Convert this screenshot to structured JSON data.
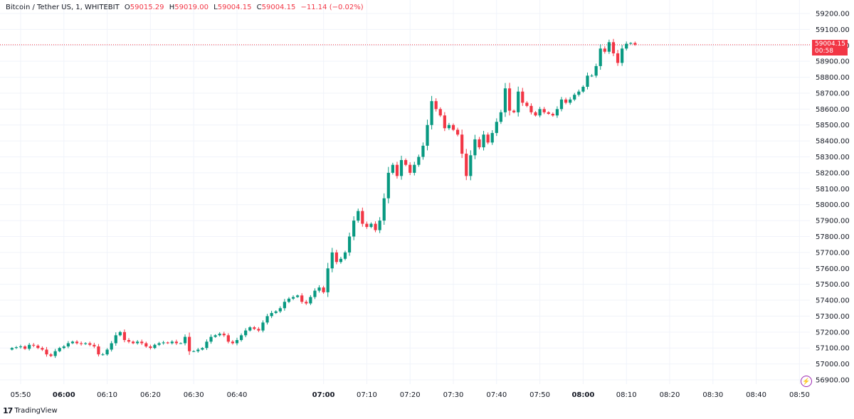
{
  "legend": {
    "symbol": "Bitcoin / Tether US, 1, WHITEBIT",
    "open_label": "O",
    "open": "59015.29",
    "high_label": "H",
    "high": "59019.00",
    "low_label": "L",
    "low": "59004.15",
    "close_label": "C",
    "close": "59004.15",
    "change": "−11.14 (−0.02%)"
  },
  "price_tag": {
    "price": "59004.15",
    "countdown": "00:58"
  },
  "branding": {
    "logo": "17",
    "name": "TradingView"
  },
  "colors": {
    "up": "#089981",
    "down": "#f23645",
    "grid": "#f0f3fa",
    "axis_text": "#131722"
  },
  "chart_data": {
    "type": "candlestick",
    "x_axis_ticks": [
      {
        "label": "05:50",
        "minute": 0,
        "bold": false
      },
      {
        "label": "06:00",
        "minute": 10,
        "bold": true
      },
      {
        "label": "06:10",
        "minute": 20,
        "bold": false
      },
      {
        "label": "06:20",
        "minute": 30,
        "bold": false
      },
      {
        "label": "06:30",
        "minute": 40,
        "bold": false
      },
      {
        "label": "06:40",
        "minute": 50,
        "bold": false
      },
      {
        "label": "07:00",
        "minute": 70,
        "bold": true
      },
      {
        "label": "07:10",
        "minute": 80,
        "bold": false
      },
      {
        "label": "07:20",
        "minute": 90,
        "bold": false
      },
      {
        "label": "07:30",
        "minute": 100,
        "bold": false
      },
      {
        "label": "07:40",
        "minute": 110,
        "bold": false
      },
      {
        "label": "07:50",
        "minute": 120,
        "bold": false
      },
      {
        "label": "08:00",
        "minute": 130,
        "bold": true
      },
      {
        "label": "08:10",
        "minute": 140,
        "bold": false
      },
      {
        "label": "08:20",
        "minute": 150,
        "bold": false
      },
      {
        "label": "08:30",
        "minute": 160,
        "bold": false
      },
      {
        "label": "08:40",
        "minute": 170,
        "bold": false
      },
      {
        "label": "08:50",
        "minute": 180,
        "bold": false
      }
    ],
    "y_axis_ticks": [
      "59200.00",
      "59100.00",
      "59000.00",
      "58900.00",
      "58800.00",
      "58700.00",
      "58600.00",
      "58500.00",
      "58400.00",
      "58300.00",
      "58200.00",
      "58100.00",
      "58000.00",
      "57900.00",
      "57800.00",
      "57700.00",
      "57600.00",
      "57500.00",
      "57400.00",
      "57300.00",
      "57200.00",
      "57100.00",
      "57000.00",
      "56900.00"
    ],
    "ylim": [
      56900,
      59200
    ],
    "last_price": 59004.15,
    "start_minute": -2,
    "closes": [
      57100,
      57105,
      57110,
      57095,
      57120,
      57115,
      57100,
      57090,
      57060,
      57050,
      57080,
      57100,
      57110,
      57130,
      57140,
      57130,
      57125,
      57130,
      57120,
      57110,
      57060,
      57060,
      57090,
      57130,
      57180,
      57200,
      57150,
      57140,
      57130,
      57140,
      57130,
      57110,
      57100,
      57120,
      57130,
      57135,
      57130,
      57140,
      57130,
      57130,
      57170,
      57080,
      57080,
      57090,
      57100,
      57140,
      57170,
      57180,
      57190,
      57180,
      57140,
      57130,
      57150,
      57180,
      57210,
      57230,
      57220,
      57210,
      57260,
      57300,
      57320,
      57330,
      57350,
      57390,
      57410,
      57420,
      57430,
      57390,
      57380,
      57420,
      57460,
      57480,
      57450,
      57600,
      57700,
      57640,
      57660,
      57700,
      57800,
      57900,
      57960,
      57880,
      57860,
      57880,
      57840,
      57900,
      58040,
      58200,
      58250,
      58180,
      58280,
      58250,
      58200,
      58250,
      58300,
      58370,
      58500,
      58650,
      58600,
      58560,
      58480,
      58500,
      58470,
      58440,
      58320,
      58180,
      58310,
      58410,
      58360,
      58440,
      58390,
      58450,
      58520,
      58580,
      58730,
      58590,
      58580,
      58710,
      58640,
      58620,
      58580,
      58560,
      58600,
      58580,
      58570,
      58560,
      58600,
      58660,
      58640,
      58660,
      58690,
      58710,
      58740,
      58810,
      58810,
      58870,
      58980,
      58960,
      59020,
      58950,
      58890,
      58980,
      59010,
      59015,
      59005
    ]
  }
}
